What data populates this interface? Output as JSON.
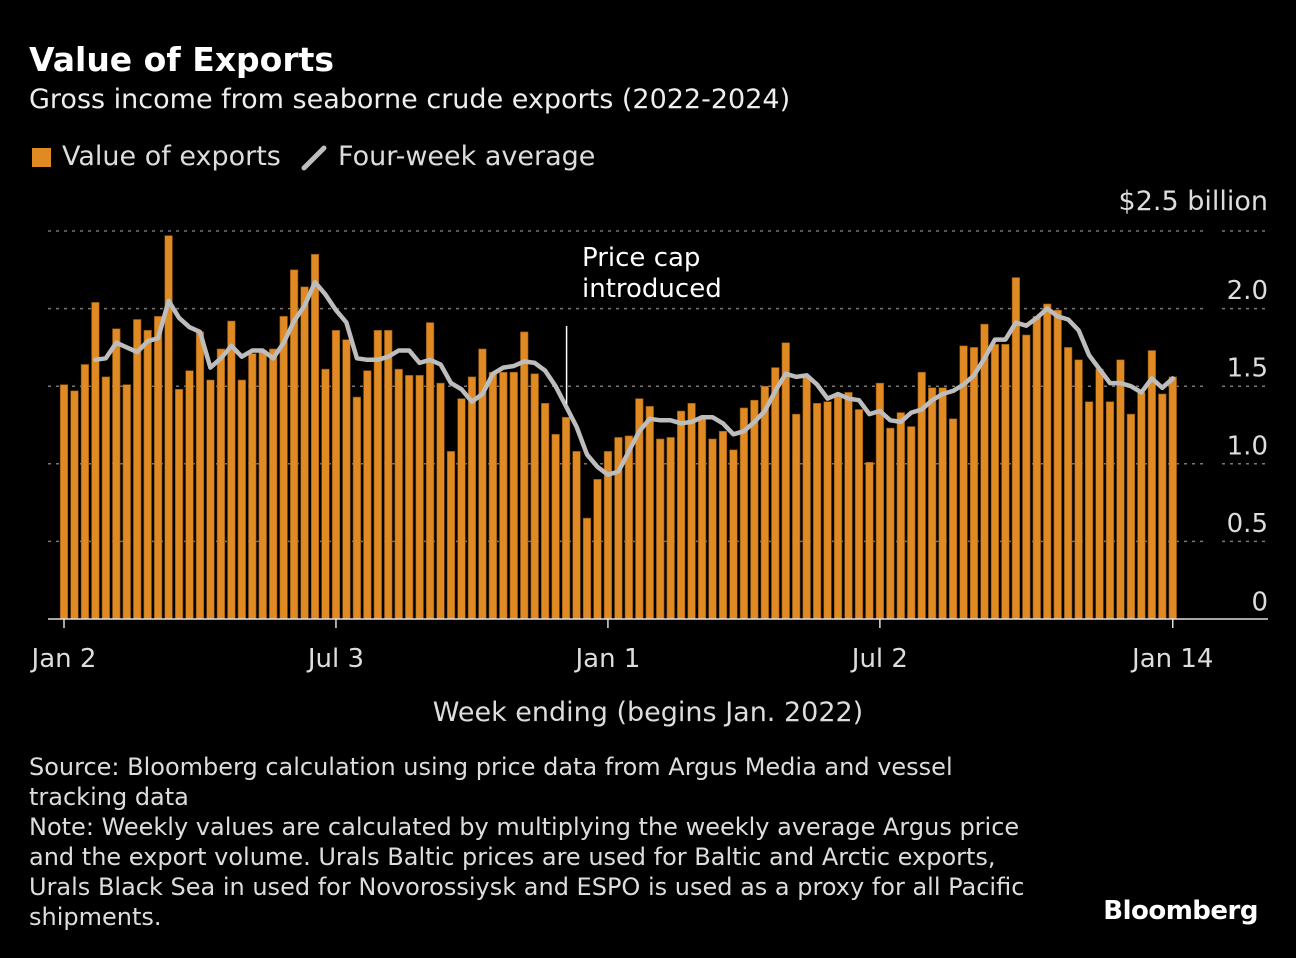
{
  "chart_data": {
    "type": "bar",
    "title": "Value of Exports",
    "subtitle": "Gross income from seaborne crude exports (2022-2024)",
    "xlabel": "Week ending (begins Jan. 2022)",
    "ylabel": "$2.5 billion",
    "ylim": [
      0,
      2.5
    ],
    "yticks": [
      {
        "value": 0,
        "label": "0"
      },
      {
        "value": 0.5,
        "label": "0.5"
      },
      {
        "value": 1.0,
        "label": "1.0"
      },
      {
        "value": 1.5,
        "label": "1.5"
      },
      {
        "value": 2.0,
        "label": "2.0"
      }
    ],
    "xticks": [
      {
        "label": "Jan 2",
        "date": "2022-01-02"
      },
      {
        "label": "Jul 3",
        "date": "2022-07-03"
      },
      {
        "label": "Jan 1",
        "date": "2023-01-01"
      },
      {
        "label": "Jul 2",
        "date": "2023-07-02"
      },
      {
        "label": "Jan 14",
        "date": "2024-01-14"
      }
    ],
    "grid": true,
    "legend_placement": "top-left",
    "annotation": {
      "text_line1": "Price cap",
      "text_line2": "introduced",
      "date": "2022-12-04"
    },
    "series": [
      {
        "name": "Value of exports",
        "type": "bar",
        "color": "#e08a24",
        "values": [
          1.51,
          1.47,
          1.64,
          2.04,
          1.56,
          1.87,
          1.51,
          1.93,
          1.86,
          1.95,
          2.47,
          1.48,
          1.6,
          1.85,
          1.54,
          1.74,
          1.92,
          1.54,
          1.71,
          1.73,
          1.74,
          1.95,
          2.25,
          2.14,
          2.35,
          1.61,
          1.86,
          1.8,
          1.43,
          1.6,
          1.86,
          1.86,
          1.61,
          1.57,
          1.57,
          1.91,
          1.52,
          1.08,
          1.42,
          1.56,
          1.74,
          1.59,
          1.59,
          1.59,
          1.85,
          1.58,
          1.39,
          1.19,
          1.3,
          1.08,
          0.65,
          0.9,
          1.08,
          1.17,
          1.18,
          1.42,
          1.37,
          1.16,
          1.17,
          1.34,
          1.39,
          1.29,
          1.16,
          1.21,
          1.09,
          1.36,
          1.41,
          1.5,
          1.62,
          1.78,
          1.32,
          1.56,
          1.39,
          1.4,
          1.44,
          1.46,
          1.35,
          1.01,
          1.52,
          1.23,
          1.33,
          1.24,
          1.59,
          1.49,
          1.49,
          1.29,
          1.76,
          1.75,
          1.9,
          1.77,
          1.77,
          2.2,
          1.83,
          1.95,
          2.03,
          1.99,
          1.75,
          1.67,
          1.4,
          1.61,
          1.4,
          1.67,
          1.32,
          1.46,
          1.73,
          1.45,
          1.56
        ]
      },
      {
        "name": "Four-week average",
        "type": "line",
        "color": "#bdbdbd",
        "values": [
          null,
          null,
          null,
          1.67,
          1.68,
          1.78,
          1.75,
          1.72,
          1.79,
          1.81,
          2.05,
          1.94,
          1.88,
          1.85,
          1.62,
          1.68,
          1.76,
          1.69,
          1.73,
          1.73,
          1.68,
          1.78,
          1.92,
          2.02,
          2.17,
          2.09,
          1.99,
          1.91,
          1.68,
          1.67,
          1.67,
          1.69,
          1.73,
          1.73,
          1.65,
          1.67,
          1.64,
          1.52,
          1.48,
          1.4,
          1.45,
          1.58,
          1.62,
          1.63,
          1.66,
          1.65,
          1.6,
          1.5,
          1.37,
          1.24,
          1.06,
          0.98,
          0.93,
          0.95,
          1.08,
          1.21,
          1.29,
          1.28,
          1.28,
          1.26,
          1.27,
          1.3,
          1.3,
          1.26,
          1.19,
          1.21,
          1.27,
          1.34,
          1.47,
          1.58,
          1.56,
          1.57,
          1.51,
          1.42,
          1.45,
          1.42,
          1.41,
          1.32,
          1.34,
          1.28,
          1.27,
          1.33,
          1.35,
          1.41,
          1.45,
          1.47,
          1.51,
          1.57,
          1.68,
          1.8,
          1.8,
          1.91,
          1.89,
          1.94,
          2.0,
          1.95,
          1.93,
          1.86,
          1.7,
          1.61,
          1.52,
          1.52,
          1.5,
          1.46,
          1.55,
          1.49,
          1.55
        ]
      }
    ]
  },
  "legend": {
    "bars_label": "Value of exports",
    "line_label": "Four-week average"
  },
  "footer": {
    "source": "Source: Bloomberg calculation using price data from Argus Media and vessel tracking data",
    "note": "Note: Weekly values are calculated by multiplying the weekly average Argus price and the export volume. Urals Baltic prices are used for Baltic and Arctic exports, Urals Black Sea in used for Novorossiysk and ESPO is used as a proxy for all Pacific shipments."
  },
  "logo": "Bloomberg"
}
